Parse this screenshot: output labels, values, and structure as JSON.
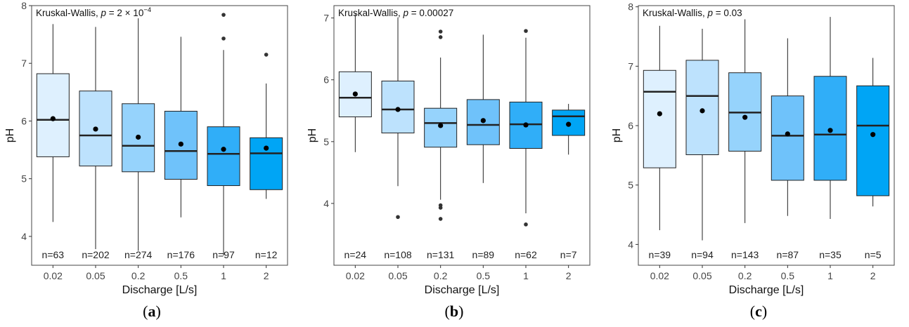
{
  "figure": {
    "panel_labels": [
      "(a)",
      "(b)",
      "(c)"
    ]
  },
  "colors": {
    "box_fills": [
      "#DEF0FE",
      "#BDE2FD",
      "#96D3FC",
      "#6FC2FA",
      "#30AEF8",
      "#00A5F5"
    ],
    "box_stroke": "#222222",
    "panel_border": "#444444",
    "mean_point": "#000000"
  },
  "chart_data": [
    {
      "type": "box",
      "annotation": "Kruskal-Wallis, p = 2 × 10⁻⁴",
      "annotation_prefix": "Kruskal-Wallis, ",
      "annotation_p_symbol": "p",
      "annotation_value": " = 2 × 10",
      "annotation_exponent": "−4",
      "xlabel": "Discharge [L/s]",
      "ylabel": "pH",
      "ylim": [
        3.5,
        8.0
      ],
      "yticks": [
        4,
        5,
        6,
        7,
        8
      ],
      "categories": [
        "0.02",
        "0.05",
        "0.2",
        "0.5",
        "1",
        "2"
      ],
      "counts": [
        "n=63",
        "n=202",
        "n=274",
        "n=176",
        "n=97",
        "n=12"
      ],
      "boxes": [
        {
          "min": 4.25,
          "q1": 5.38,
          "median": 6.02,
          "q3": 6.82,
          "max": 7.68,
          "mean": 6.04,
          "outliers": []
        },
        {
          "min": 3.78,
          "q1": 5.22,
          "median": 5.75,
          "q3": 6.52,
          "max": 7.63,
          "mean": 5.86,
          "outliers": []
        },
        {
          "min": 3.75,
          "q1": 5.12,
          "median": 5.57,
          "q3": 6.3,
          "max": 7.78,
          "mean": 5.72,
          "outliers": []
        },
        {
          "min": 4.33,
          "q1": 4.99,
          "median": 5.48,
          "q3": 6.17,
          "max": 7.46,
          "mean": 5.6,
          "outliers": []
        },
        {
          "min": 3.67,
          "q1": 4.88,
          "median": 5.43,
          "q3": 5.9,
          "max": 7.23,
          "mean": 5.51,
          "outliers": [
            7.43,
            7.84
          ]
        },
        {
          "min": 4.65,
          "q1": 4.81,
          "median": 5.44,
          "q3": 5.71,
          "max": 6.65,
          "mean": 5.53,
          "outliers": [
            7.15
          ]
        }
      ]
    },
    {
      "type": "box",
      "annotation": "Kruskal-Wallis, p = 0.00027",
      "annotation_prefix": "Kruskal-Wallis, ",
      "annotation_p_symbol": "p",
      "annotation_value": " = 0.00027",
      "annotation_exponent": "",
      "xlabel": "Discharge [L/s]",
      "ylabel": "pH",
      "ylim": [
        3.0,
        7.2
      ],
      "yticks": [
        4,
        5,
        6,
        7
      ],
      "categories": [
        "0.02",
        "0.05",
        "0.2",
        "0.5",
        "1",
        "2"
      ],
      "counts": [
        "n=24",
        "n=108",
        "n=131",
        "n=89",
        "n=62",
        "n=7"
      ],
      "boxes": [
        {
          "min": 4.83,
          "q1": 5.4,
          "median": 5.71,
          "q3": 6.13,
          "max": 7.08,
          "mean": 5.77,
          "outliers": []
        },
        {
          "min": 4.28,
          "q1": 5.14,
          "median": 5.52,
          "q3": 5.98,
          "max": 7.01,
          "mean": 5.52,
          "outliers": [
            3.78
          ]
        },
        {
          "min": 4.06,
          "q1": 4.91,
          "median": 5.3,
          "q3": 5.54,
          "max": 6.36,
          "mean": 5.26,
          "outliers": [
            3.75,
            3.93,
            3.97,
            6.69,
            6.78
          ]
        },
        {
          "min": 4.33,
          "q1": 4.95,
          "median": 5.27,
          "q3": 5.68,
          "max": 6.73,
          "mean": 5.34,
          "outliers": []
        },
        {
          "min": 3.84,
          "q1": 4.89,
          "median": 5.28,
          "q3": 5.64,
          "max": 6.68,
          "mean": 5.27,
          "outliers": [
            3.66,
            6.79
          ]
        },
        {
          "min": 4.79,
          "q1": 5.1,
          "median": 5.41,
          "q3": 5.51,
          "max": 5.61,
          "mean": 5.28,
          "outliers": []
        }
      ]
    },
    {
      "type": "box",
      "annotation": "Kruskal-Wallis, p = 0.03",
      "annotation_prefix": "Kruskal-Wallis, ",
      "annotation_p_symbol": "p",
      "annotation_value": " = 0.03",
      "annotation_exponent": "",
      "xlabel": "Discharge [L/s]",
      "ylabel": "pH",
      "ylim": [
        3.65,
        8.02
      ],
      "yticks": [
        4,
        5,
        6,
        7,
        8
      ],
      "categories": [
        "0.02",
        "0.05",
        "0.2",
        "0.5",
        "1",
        "2"
      ],
      "counts": [
        "n=39",
        "n=94",
        "n=143",
        "n=87",
        "n=35",
        "n=5"
      ],
      "boxes": [
        {
          "min": 4.24,
          "q1": 5.29,
          "median": 6.57,
          "q3": 6.93,
          "max": 7.68,
          "mean": 6.2,
          "outliers": []
        },
        {
          "min": 4.07,
          "q1": 5.51,
          "median": 6.5,
          "q3": 7.1,
          "max": 7.63,
          "mean": 6.25,
          "outliers": []
        },
        {
          "min": 4.36,
          "q1": 5.57,
          "median": 6.22,
          "q3": 6.89,
          "max": 7.79,
          "mean": 6.14,
          "outliers": []
        },
        {
          "min": 4.48,
          "q1": 5.08,
          "median": 5.83,
          "q3": 6.5,
          "max": 7.47,
          "mean": 5.86,
          "outliers": []
        },
        {
          "min": 4.43,
          "q1": 5.08,
          "median": 5.85,
          "q3": 6.83,
          "max": 7.83,
          "mean": 5.92,
          "outliers": []
        },
        {
          "min": 4.64,
          "q1": 4.82,
          "median": 6.0,
          "q3": 6.67,
          "max": 7.14,
          "mean": 5.85,
          "outliers": []
        }
      ]
    }
  ]
}
